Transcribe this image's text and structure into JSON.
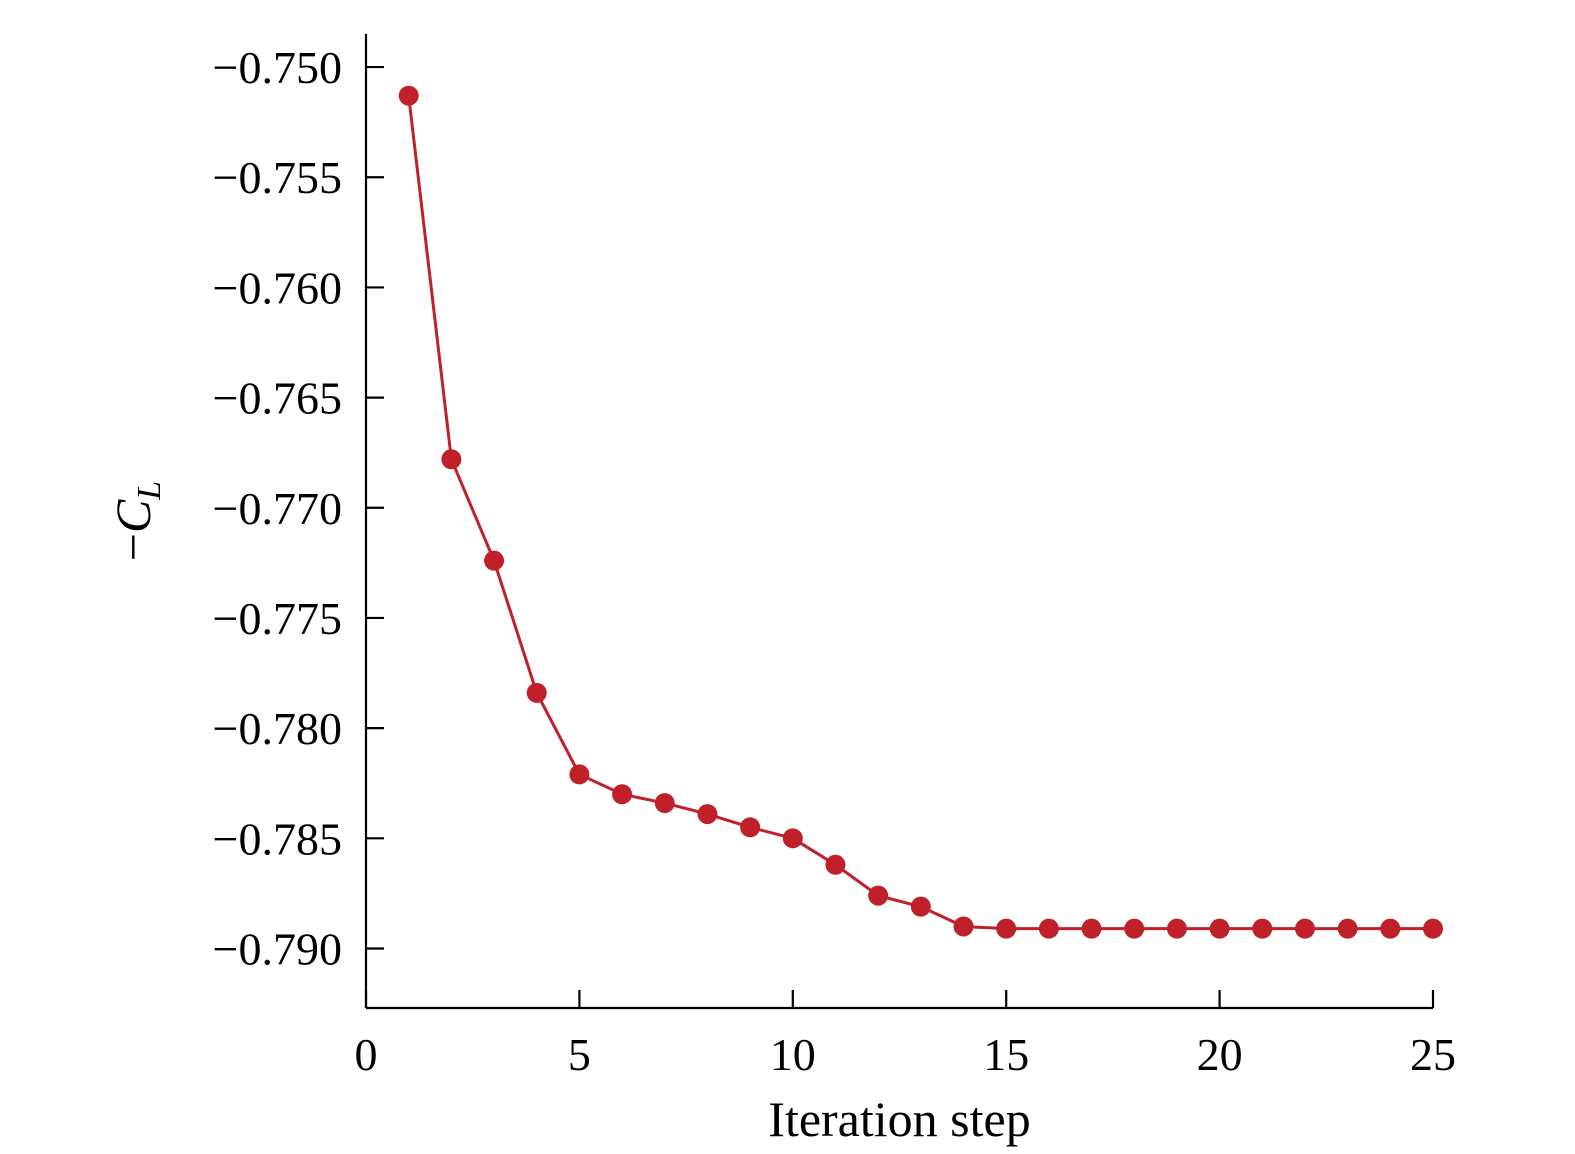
{
  "chart_data": {
    "type": "line",
    "title": "",
    "xlabel": "Iteration step",
    "ylabel": {
      "prefix": "−",
      "symbol": "C",
      "subscript": "L"
    },
    "xlim": [
      0,
      25
    ],
    "ylim": [
      -0.7927,
      -0.7485
    ],
    "x_ticks": [
      0,
      5,
      10,
      15,
      20,
      25
    ],
    "x_tick_labels": [
      "0",
      "5",
      "10",
      "15",
      "20",
      "25"
    ],
    "y_ticks": [
      -0.75,
      -0.755,
      -0.76,
      -0.765,
      -0.77,
      -0.775,
      -0.78,
      -0.785,
      -0.79
    ],
    "y_tick_labels": [
      "−0.750",
      "−0.755",
      "−0.760",
      "−0.765",
      "−0.770",
      "−0.775",
      "−0.780",
      "−0.785",
      "−0.790"
    ],
    "grid": false,
    "legend": "none",
    "series": [
      {
        "color": "#c0202a",
        "marker": "circle",
        "x": [
          1,
          2,
          3,
          4,
          5,
          6,
          7,
          8,
          9,
          10,
          11,
          12,
          13,
          14,
          15,
          16,
          17,
          18,
          19,
          20,
          21,
          22,
          23,
          24,
          25
        ],
        "y": [
          -0.7513,
          -0.7678,
          -0.7724,
          -0.7784,
          -0.7821,
          -0.783,
          -0.7834,
          -0.7839,
          -0.7845,
          -0.785,
          -0.7862,
          -0.7876,
          -0.7881,
          -0.789,
          -0.7891,
          -0.7891,
          -0.7891,
          -0.7891,
          -0.7891,
          -0.7891,
          -0.7891,
          -0.7891,
          -0.7891,
          -0.7891,
          -0.7891
        ]
      }
    ]
  }
}
